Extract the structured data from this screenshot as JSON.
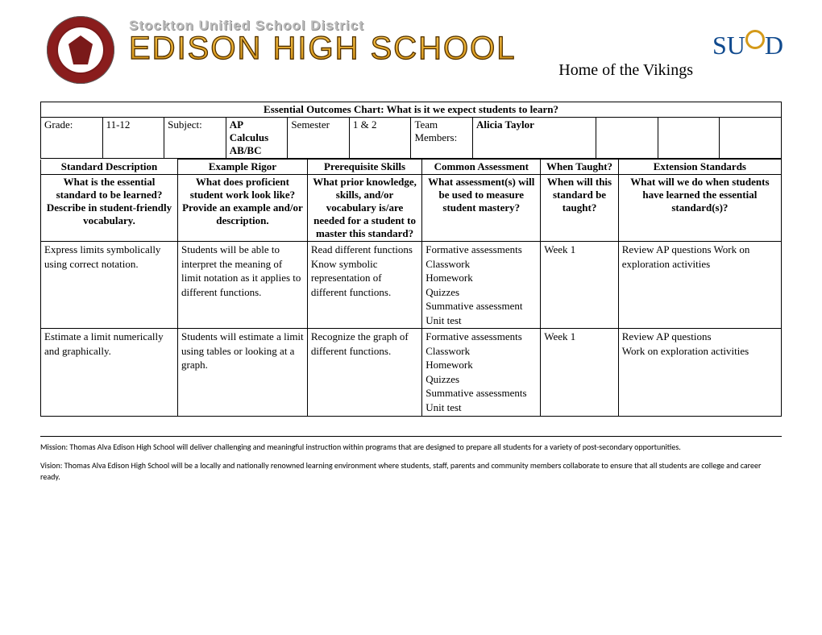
{
  "banner": {
    "district": "Stockton Unified School District",
    "school_name": "EDISON HIGH SCHOOL",
    "subtitle": "Home of the Vikings",
    "susd_text": "SUSD"
  },
  "chart": {
    "title": "Essential Outcomes Chart:  What is it we expect students to learn?",
    "meta": {
      "grade_label": "Grade:",
      "grade_value": "11-12",
      "subject_label": "Subject:",
      "subject_value": "AP Calculus AB/BC",
      "semester_label": "Semester",
      "semester_value": "1 & 2",
      "team_label": "Team Members:",
      "team_value": "Alicia Taylor"
    },
    "columns": [
      "Standard Description",
      "Example Rigor",
      "Prerequisite Skills",
      "Common Assessment",
      "When Taught?",
      "Extension Standards"
    ],
    "column_desc": [
      "What is the essential standard to be learned? Describe in student-friendly vocabulary.",
      "What does proficient student work look like? Provide an example and/or description.",
      "What prior knowledge, skills, and/or vocabulary is/are needed for a student to master this standard?",
      "What assessment(s) will be used to measure student mastery?",
      "When will this standard be taught?",
      "What will we do when students have learned the essential standard(s)?"
    ],
    "col_widths_pct": [
      18.5,
      17.5,
      15.5,
      16,
      10.5,
      22
    ],
    "rows": [
      {
        "standard": "Express limits symbolically using correct notation.",
        "rigor": "Students will be able to interpret the meaning of limit notation as it applies to different functions.",
        "prereq": "Read different functions\nKnow symbolic representation of different functions.",
        "assessment": "Formative assessments\nClasswork\nHomework\nQuizzes\nSummative assessment\nUnit test",
        "when": "Week 1",
        "extension": "Review AP questions Work on exploration activities"
      },
      {
        "standard": "Estimate a limit numerically and graphically.",
        "rigor": "Students will estimate a limit using tables or looking at a graph.",
        "prereq": "Recognize the graph of different functions.",
        "assessment": "Formative assessments\nClasswork\nHomework\nQuizzes\nSummative assessments\nUnit test",
        "when": "Week 1",
        "extension": "Review AP questions\nWork on exploration activities"
      }
    ]
  },
  "footer": {
    "mission": "Mission: Thomas Alva Edison High School will deliver challenging and meaningful instruction within programs that are designed to prepare all students for a variety of post-secondary opportunities.",
    "vision": "Vision: Thomas Alva Edison High School will be a locally and nationally renowned learning environment where students, staff, parents and community members collaborate to ensure that all students are college and career ready."
  }
}
